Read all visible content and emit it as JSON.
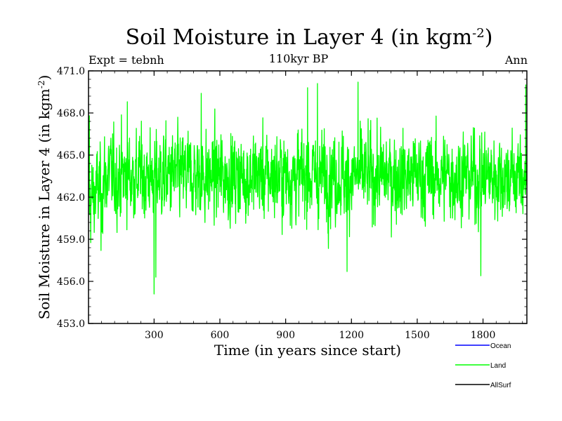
{
  "chart_data": {
    "type": "line",
    "title": "Soil Moisture in Layer 4 (in kgm",
    "title_sup": "-2",
    "title_close": ")",
    "subtitle": "110kyr BP",
    "left_label": "Expt = tebnh",
    "right_label": "Ann",
    "xlabel": "Time (in years since start)",
    "ylabel": "Soil Moisture in Layer 4 (in kgm",
    "ylabel_sup": "-2",
    "ylabel_close": ")",
    "xlim": [
      1,
      2000
    ],
    "ylim": [
      453.0,
      471.0
    ],
    "xticks": [
      300,
      600,
      900,
      1200,
      1500,
      1800
    ],
    "xtick_labels": [
      "300",
      "600",
      "900",
      "1200",
      "1500",
      "1800"
    ],
    "yticks": [
      453.0,
      456.0,
      459.0,
      462.0,
      465.0,
      468.0,
      471.0
    ],
    "ytick_labels": [
      "453.0",
      "456.0",
      "459.0",
      "462.0",
      "465.0",
      "468.0",
      "471.0"
    ],
    "series": [
      {
        "name": "Ocean",
        "color": "#0000ff",
        "values": []
      },
      {
        "name": "Land",
        "color": "#00ff00",
        "mean": 463.5,
        "std": 1.6,
        "n": 2000,
        "notable_points": [
          {
            "x": 300,
            "y": 455.1
          },
          {
            "x": 308,
            "y": 456.3
          },
          {
            "x": 1180,
            "y": 456.7
          },
          {
            "x": 1790,
            "y": 456.4
          },
          {
            "x": 1230,
            "y": 470.2
          },
          {
            "x": 1045,
            "y": 470.1
          },
          {
            "x": 1995,
            "y": 470.0
          },
          {
            "x": 1000,
            "y": 469.8
          },
          {
            "x": 515,
            "y": 469.4
          },
          {
            "x": 178,
            "y": 468.8
          },
          {
            "x": 5,
            "y": 467.8
          },
          {
            "x": 58,
            "y": 458.2
          }
        ]
      },
      {
        "name": "AllSurf",
        "color": "#000000",
        "values": []
      }
    ]
  }
}
